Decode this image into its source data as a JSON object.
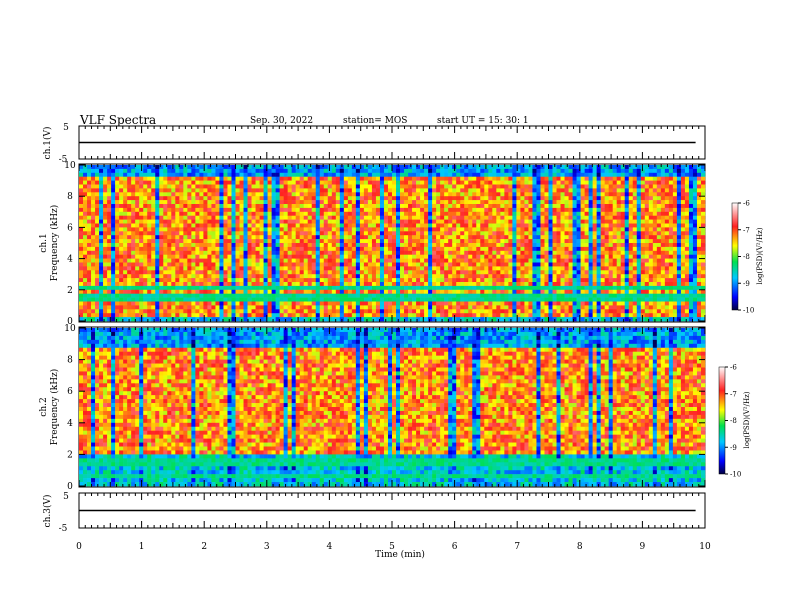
{
  "header": {
    "title": "VLF Spectra",
    "date": "Sep. 30, 2022",
    "station": "station= MOS",
    "start": "start  UT =   15: 30: 1"
  },
  "chart_data": [
    {
      "type": "line",
      "panel": "ch1-waveform",
      "ylabel": "ch.1(V)",
      "ylim": [
        -5,
        5
      ],
      "yticks": [
        "5",
        "-5"
      ],
      "x": [
        0,
        1,
        2,
        3,
        4,
        5,
        6,
        7,
        8,
        9,
        9.85
      ],
      "values": [
        0,
        0,
        0,
        0,
        0,
        0,
        0,
        0,
        0,
        0,
        0
      ]
    },
    {
      "type": "heatmap",
      "panel": "ch1-spectrogram",
      "ylabel": "ch.1\nFrequency (kHz)",
      "ylabel_line1": "ch.1",
      "ylabel_line2": "Frequency (kHz)",
      "ylim": [
        0,
        10
      ],
      "yticks": [
        "0",
        "2",
        "4",
        "6",
        "8",
        "10"
      ],
      "colorbar": {
        "label": "log(PSD)(V²/Hz)",
        "ticks": [
          "-6",
          "-7",
          "-8",
          "-9",
          "-10"
        ],
        "range": [
          -10,
          -6
        ]
      },
      "noise_band_khz": [
        0.3,
        9.2
      ],
      "strong_lines_khz": [
        1.5,
        2.2
      ]
    },
    {
      "type": "heatmap",
      "panel": "ch2-spectrogram",
      "ylabel": "ch.2\nFrequency (kHz)",
      "ylabel_line1": "ch.2",
      "ylabel_line2": "Frequency (kHz)",
      "ylim": [
        0,
        10
      ],
      "yticks": [
        "0",
        "2",
        "4",
        "6",
        "8",
        "10"
      ],
      "colorbar": {
        "label": "log(PSD)(V²/Hz)",
        "ticks": [
          "-6",
          "-7",
          "-8",
          "-9",
          "-10"
        ],
        "range": [
          -10,
          -6
        ]
      },
      "noise_band_khz": [
        2.0,
        8.8
      ],
      "strong_lines_khz": [
        0.6,
        1.3,
        1.7
      ]
    },
    {
      "type": "line",
      "panel": "ch3-waveform",
      "ylabel": "ch.3(V)",
      "ylim": [
        -5,
        5
      ],
      "yticks": [
        "5",
        "-5"
      ],
      "x": [
        0,
        1,
        2,
        3,
        4,
        5,
        6,
        7,
        8,
        9,
        9.85
      ],
      "values": [
        0,
        0,
        0,
        0,
        0,
        0,
        0,
        0,
        0,
        0,
        0
      ]
    }
  ],
  "xaxis": {
    "label": "Time  (min)",
    "range": [
      0,
      10
    ],
    "ticks": [
      "0",
      "1",
      "2",
      "3",
      "4",
      "5",
      "6",
      "7",
      "8",
      "9",
      "10"
    ]
  }
}
